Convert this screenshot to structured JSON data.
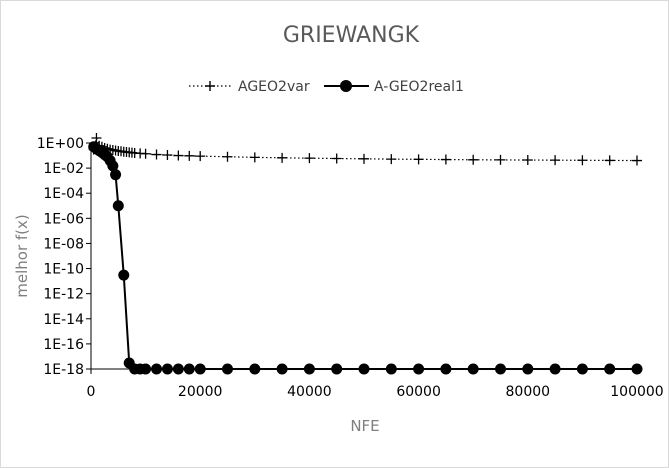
{
  "chart_data": {
    "type": "line",
    "title": "GRIEWANGK",
    "xlabel": "NFE",
    "ylabel": "melhor f(x)",
    "xlim": [
      0,
      100000
    ],
    "ylim_log10": [
      -18,
      0
    ],
    "y_scale": "log",
    "legend_position": "top",
    "grid": false,
    "x_tick_labels": [
      "0",
      "20000",
      "40000",
      "60000",
      "80000",
      "100000"
    ],
    "y_tick_labels": [
      "1E+00",
      "1E-02",
      "1E-04",
      "1E-06",
      "1E-08",
      "1E-10",
      "1E-12",
      "1E-14",
      "1E-16",
      "1E-18"
    ],
    "series": [
      {
        "name": "AGEO2var",
        "marker": "plus",
        "line": "dotted",
        "x": [
          500,
          1000,
          1500,
          2000,
          2500,
          3000,
          3500,
          4000,
          4500,
          5000,
          5500,
          6000,
          6500,
          7000,
          7500,
          8000,
          9000,
          10000,
          12000,
          14000,
          16000,
          18000,
          20000,
          25000,
          30000,
          35000,
          40000,
          45000,
          50000,
          55000,
          60000,
          65000,
          70000,
          75000,
          80000,
          85000,
          90000,
          95000,
          100000
        ],
        "y": [
          0.3,
          2.5,
          0.6,
          0.5,
          0.4,
          0.35,
          0.3,
          0.28,
          0.25,
          0.23,
          0.22,
          0.2,
          0.19,
          0.18,
          0.17,
          0.16,
          0.15,
          0.14,
          0.12,
          0.11,
          0.1,
          0.095,
          0.09,
          0.08,
          0.072,
          0.066,
          0.062,
          0.058,
          0.055,
          0.052,
          0.05,
          0.048,
          0.046,
          0.045,
          0.044,
          0.043,
          0.042,
          0.041,
          0.04
        ]
      },
      {
        "name": "A-GEO2real1",
        "marker": "circle",
        "line": "solid",
        "x": [
          500,
          1000,
          1500,
          2000,
          2500,
          3000,
          3500,
          4000,
          4500,
          5000,
          6000,
          7000,
          8000,
          9000,
          10000,
          12000,
          14000,
          16000,
          18000,
          20000,
          25000,
          30000,
          35000,
          40000,
          45000,
          50000,
          55000,
          60000,
          65000,
          70000,
          75000,
          80000,
          85000,
          90000,
          95000,
          100000
        ],
        "y": [
          0.5,
          0.35,
          0.25,
          0.18,
          0.12,
          0.08,
          0.04,
          0.015,
          0.003,
          1e-05,
          3e-11,
          3e-18,
          1e-18,
          1e-18,
          1e-18,
          1e-18,
          1e-18,
          1e-18,
          1e-18,
          1e-18,
          1e-18,
          1e-18,
          1e-18,
          1e-18,
          1e-18,
          1e-18,
          1e-18,
          1e-18,
          1e-18,
          1e-18,
          1e-18,
          1e-18,
          1e-18,
          1e-18,
          1e-18,
          1e-18
        ]
      }
    ]
  },
  "colors": {
    "title": "#595959",
    "axis_label": "#7f7f7f",
    "series": "#000000"
  }
}
